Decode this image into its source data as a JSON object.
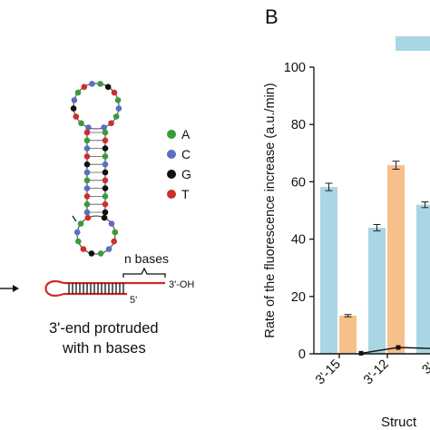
{
  "panel_label": "B",
  "legend_ions": {
    "A": "A",
    "C": "C",
    "G": "G",
    "T": "T"
  },
  "legend_colors": {
    "A": "#3a9a3a",
    "C": "#5a6ec2",
    "G": "#111111",
    "T": "#cc2f2f"
  },
  "hairpin_schematic": {
    "bracket_label": "n bases",
    "three_prime_label": "3'-OH",
    "five_prime_label": "5'",
    "caption_line1": "3'-end protruded",
    "caption_line2": "with n bases"
  },
  "chart_data": {
    "type": "bar",
    "title": "",
    "ylabel": "Rate of the fluorescence increase (a.u./min)",
    "xlabel": "Struct",
    "ylim": [
      0,
      100
    ],
    "yticks": [
      "0",
      "20",
      "40",
      "60",
      "80",
      "100"
    ],
    "categories": [
      "3'-15",
      "3'-12",
      "3'-"
    ],
    "series": [
      {
        "color": "#a9d6e5",
        "values": [
          58.2,
          44.0,
          52.0
        ],
        "errors": [
          1.3,
          1.1,
          1.0
        ]
      },
      {
        "color": "#f7bf8a",
        "values": [
          13.3,
          65.8,
          null
        ],
        "errors": [
          0.4,
          1.4,
          null
        ]
      }
    ],
    "line_series": {
      "color": "#111111",
      "values": [
        0.2,
        2.2,
        1.8
      ]
    },
    "legend_swatch_color": "#a9d6e5"
  }
}
